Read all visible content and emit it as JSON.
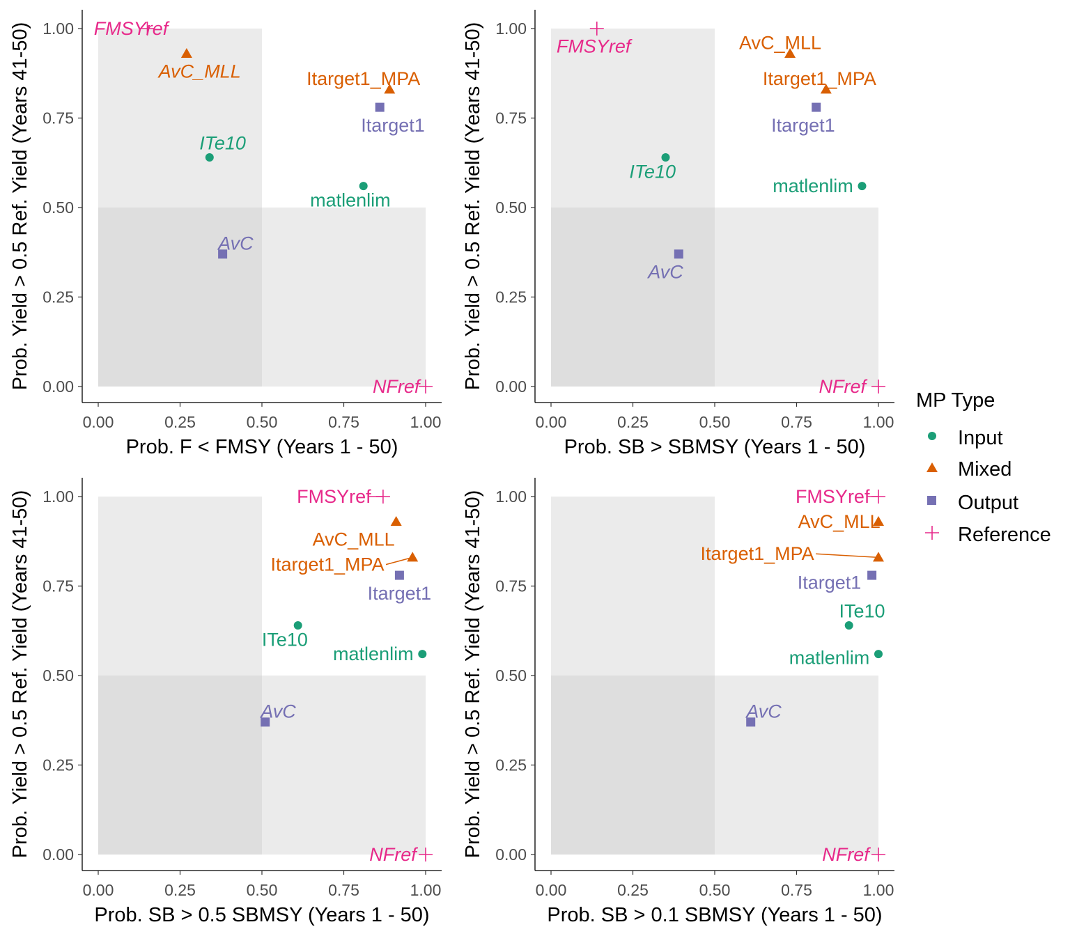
{
  "chart_data": [
    {
      "type": "scatter",
      "xlabel": "Prob. F < FMSY (Years 1 - 50)",
      "ylabel": "Prob. Yield > 0.5 Ref. Yield (Years 41-50)",
      "xlim": [
        0,
        1
      ],
      "ylim": [
        0,
        1
      ],
      "xticks": [
        "0.00",
        "0.25",
        "0.50",
        "0.75",
        "1.00"
      ],
      "yticks": [
        "0.00",
        "0.25",
        "0.50",
        "0.75",
        "1.00"
      ],
      "points": [
        {
          "label": "FMSYref",
          "type": "Reference",
          "x": 0.15,
          "y": 1.0,
          "italic": true,
          "lx": 0.1,
          "ly": 1.0
        },
        {
          "label": "AvC_MLL",
          "type": "Mixed",
          "x": 0.27,
          "y": 0.93,
          "italic": true,
          "lx": 0.31,
          "ly": 0.88
        },
        {
          "label": "Itarget1_MPA",
          "type": "Mixed",
          "x": 0.89,
          "y": 0.83,
          "italic": false,
          "lx": 0.81,
          "ly": 0.86
        },
        {
          "label": "Itarget1",
          "type": "Output",
          "x": 0.86,
          "y": 0.78,
          "italic": false,
          "lx": 0.9,
          "ly": 0.73
        },
        {
          "label": "ITe10",
          "type": "Input",
          "x": 0.34,
          "y": 0.64,
          "italic": true,
          "lx": 0.38,
          "ly": 0.68
        },
        {
          "label": "matlenlim",
          "type": "Input",
          "x": 0.81,
          "y": 0.56,
          "italic": false,
          "lx": 0.77,
          "ly": 0.52
        },
        {
          "label": "AvC",
          "type": "Output",
          "x": 0.38,
          "y": 0.37,
          "italic": true,
          "lx": 0.42,
          "ly": 0.4
        },
        {
          "label": "NFref",
          "type": "Reference",
          "x": 1.0,
          "y": 0.0,
          "italic": true,
          "lx": 0.91,
          "ly": 0.0
        }
      ]
    },
    {
      "type": "scatter",
      "xlabel": "Prob. SB > SBMSY (Years 1 - 50)",
      "ylabel": "Prob. Yield > 0.5 Ref. Yield (Years 41-50)",
      "xlim": [
        0,
        1
      ],
      "ylim": [
        0,
        1
      ],
      "xticks": [
        "0.00",
        "0.25",
        "0.50",
        "0.75",
        "1.00"
      ],
      "yticks": [
        "0.00",
        "0.25",
        "0.50",
        "0.75",
        "1.00"
      ],
      "points": [
        {
          "label": "FMSYref",
          "type": "Reference",
          "x": 0.14,
          "y": 1.0,
          "italic": true,
          "lx": 0.13,
          "ly": 0.95
        },
        {
          "label": "AvC_MLL",
          "type": "Mixed",
          "x": 0.73,
          "y": 0.93,
          "italic": false,
          "lx": 0.7,
          "ly": 0.96
        },
        {
          "label": "Itarget1_MPA",
          "type": "Mixed",
          "x": 0.84,
          "y": 0.83,
          "italic": false,
          "lx": 0.82,
          "ly": 0.86
        },
        {
          "label": "Itarget1",
          "type": "Output",
          "x": 0.81,
          "y": 0.78,
          "italic": false,
          "lx": 0.77,
          "ly": 0.73
        },
        {
          "label": "ITe10",
          "type": "Input",
          "x": 0.35,
          "y": 0.64,
          "italic": true,
          "lx": 0.31,
          "ly": 0.6
        },
        {
          "label": "matlenlim",
          "type": "Input",
          "x": 0.95,
          "y": 0.56,
          "italic": false,
          "lx": 0.8,
          "ly": 0.56
        },
        {
          "label": "AvC",
          "type": "Output",
          "x": 0.39,
          "y": 0.37,
          "italic": true,
          "lx": 0.35,
          "ly": 0.32
        },
        {
          "label": "NFref",
          "type": "Reference",
          "x": 1.0,
          "y": 0.0,
          "italic": true,
          "lx": 0.89,
          "ly": 0.0
        }
      ]
    },
    {
      "type": "scatter",
      "xlabel": "Prob. SB > 0.5 SBMSY (Years 1 - 50)",
      "ylabel": "Prob. Yield > 0.5 Ref. Yield (Years 41-50)",
      "xlim": [
        0,
        1
      ],
      "ylim": [
        0,
        1
      ],
      "xticks": [
        "0.00",
        "0.25",
        "0.50",
        "0.75",
        "1.00"
      ],
      "yticks": [
        "0.00",
        "0.25",
        "0.50",
        "0.75",
        "1.00"
      ],
      "points": [
        {
          "label": "FMSYref",
          "type": "Reference",
          "x": 0.87,
          "y": 1.0,
          "italic": false,
          "lx": 0.72,
          "ly": 1.0
        },
        {
          "label": "AvC_MLL",
          "type": "Mixed",
          "x": 0.91,
          "y": 0.93,
          "italic": false,
          "lx": 0.78,
          "ly": 0.88
        },
        {
          "label": "Itarget1_MPA",
          "type": "Mixed",
          "x": 0.96,
          "y": 0.83,
          "italic": false,
          "lx": 0.7,
          "ly": 0.81
        },
        {
          "label": "Itarget1",
          "type": "Output",
          "x": 0.92,
          "y": 0.78,
          "italic": false,
          "lx": 0.92,
          "ly": 0.73
        },
        {
          "label": "ITe10",
          "type": "Input",
          "x": 0.61,
          "y": 0.64,
          "italic": false,
          "lx": 0.57,
          "ly": 0.6
        },
        {
          "label": "matlenlim",
          "type": "Input",
          "x": 0.99,
          "y": 0.56,
          "italic": false,
          "lx": 0.84,
          "ly": 0.56
        },
        {
          "label": "AvC",
          "type": "Output",
          "x": 0.51,
          "y": 0.37,
          "italic": true,
          "lx": 0.55,
          "ly": 0.4
        },
        {
          "label": "NFref",
          "type": "Reference",
          "x": 1.0,
          "y": 0.0,
          "italic": true,
          "lx": 0.9,
          "ly": 0.0
        }
      ]
    },
    {
      "type": "scatter",
      "xlabel": "Prob. SB > 0.1 SBMSY (Years 1 - 50)",
      "ylabel": "Prob. Yield > 0.5 Ref. Yield (Years 41-50)",
      "xlim": [
        0,
        1
      ],
      "ylim": [
        0,
        1
      ],
      "xticks": [
        "0.00",
        "0.25",
        "0.50",
        "0.75",
        "1.00"
      ],
      "yticks": [
        "0.00",
        "0.25",
        "0.50",
        "0.75",
        "1.00"
      ],
      "points": [
        {
          "label": "FMSYref",
          "type": "Reference",
          "x": 1.0,
          "y": 1.0,
          "italic": false,
          "lx": 0.86,
          "ly": 1.0
        },
        {
          "label": "AvC_MLL",
          "type": "Mixed",
          "x": 1.0,
          "y": 0.93,
          "italic": false,
          "lx": 0.88,
          "ly": 0.93
        },
        {
          "label": "Itarget1_MPA",
          "type": "Mixed",
          "x": 1.0,
          "y": 0.83,
          "italic": false,
          "lx": 0.63,
          "ly": 0.84
        },
        {
          "label": "Itarget1",
          "type": "Output",
          "x": 0.98,
          "y": 0.78,
          "italic": false,
          "lx": 0.85,
          "ly": 0.76
        },
        {
          "label": "ITe10",
          "type": "Input",
          "x": 0.91,
          "y": 0.64,
          "italic": false,
          "lx": 0.95,
          "ly": 0.68
        },
        {
          "label": "matlenlim",
          "type": "Input",
          "x": 1.0,
          "y": 0.56,
          "italic": false,
          "lx": 0.85,
          "ly": 0.55
        },
        {
          "label": "AvC",
          "type": "Output",
          "x": 0.61,
          "y": 0.37,
          "italic": true,
          "lx": 0.65,
          "ly": 0.4
        },
        {
          "label": "NFref",
          "type": "Reference",
          "x": 1.0,
          "y": 0.0,
          "italic": true,
          "lx": 0.9,
          "ly": 0.0
        }
      ]
    }
  ],
  "legend": {
    "title": "MP Type",
    "items": [
      {
        "label": "Input",
        "shape": "circle",
        "color": "#1B9E77"
      },
      {
        "label": "Mixed",
        "shape": "triangle",
        "color": "#D95F02"
      },
      {
        "label": "Output",
        "shape": "square",
        "color": "#7570B3"
      },
      {
        "label": "Reference",
        "shape": "plus",
        "color": "#E7298A"
      }
    ]
  },
  "colors": {
    "Input": "#1B9E77",
    "Mixed": "#D95F02",
    "Output": "#7570B3",
    "Reference": "#E7298A",
    "shade_light": "#EBEBEB",
    "shade_dark": "#DEDEDE"
  }
}
